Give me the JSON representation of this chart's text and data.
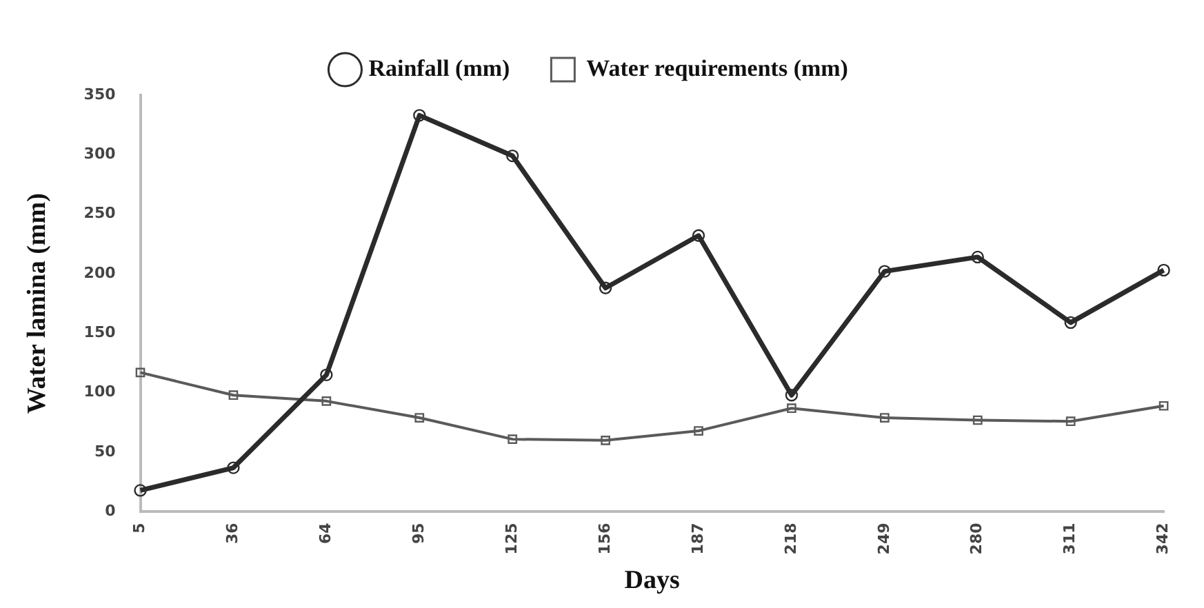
{
  "chart_data": {
    "type": "line",
    "xlabel": "Days",
    "ylabel": "Water lamina (mm)",
    "categories": [
      "5",
      "36",
      "64",
      "95",
      "125",
      "156",
      "187",
      "218",
      "249",
      "280",
      "311",
      "342"
    ],
    "series": [
      {
        "name": "Rainfall (mm)",
        "color": "#2b2b2b",
        "marker": "circle",
        "values": [
          18,
          37,
          115,
          333,
          299,
          188,
          232,
          98,
          202,
          214,
          159,
          203
        ]
      },
      {
        "name": "Water requirements (mm)",
        "color": "#5a5a5a",
        "marker": "square",
        "values": [
          117,
          98,
          93,
          79,
          61,
          60,
          68,
          87,
          79,
          77,
          76,
          89
        ]
      }
    ],
    "ylim": [
      0,
      350
    ],
    "yticks": [
      0,
      50,
      100,
      150,
      200,
      250,
      300,
      350
    ],
    "grid": false,
    "legend": "top",
    "line_style": "solid"
  }
}
